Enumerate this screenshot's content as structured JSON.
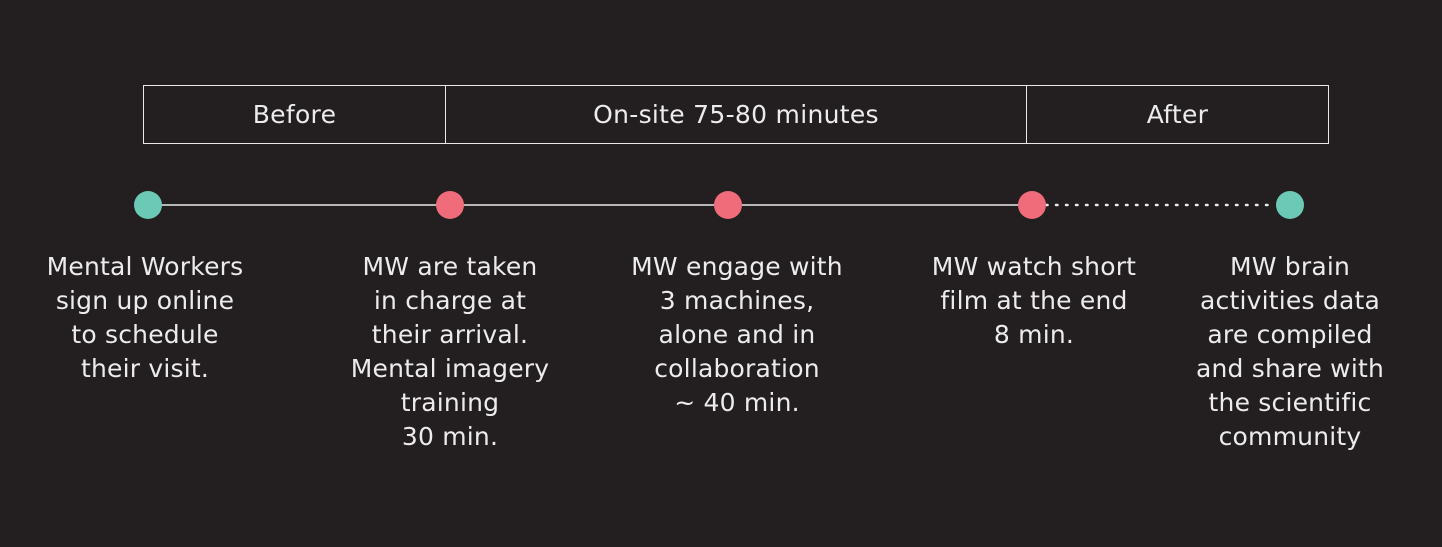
{
  "phases": {
    "before": "Before",
    "onsite": "On-site 75-80 minutes",
    "after": "After"
  },
  "colors": {
    "background": "#231f20",
    "teal": "#6cc9b6",
    "coral": "#f06c7b",
    "line": "#e8e8e8"
  },
  "steps": [
    {
      "color": "teal",
      "text": "Mental Workers\nsign up online\nto schedule\ntheir visit."
    },
    {
      "color": "coral",
      "text": "MW are taken\nin charge at\ntheir arrival.\nMental imagery\ntraining\n30 min."
    },
    {
      "color": "coral",
      "text": "MW engage with\n3 machines,\nalone and in\ncollaboration\n~ 40 min."
    },
    {
      "color": "coral",
      "text": "MW watch short\nfilm at the end\n8 min."
    },
    {
      "color": "teal",
      "text": "MW brain\nactivities data\nare compiled\nand share with\nthe scientific\ncommunity"
    }
  ]
}
